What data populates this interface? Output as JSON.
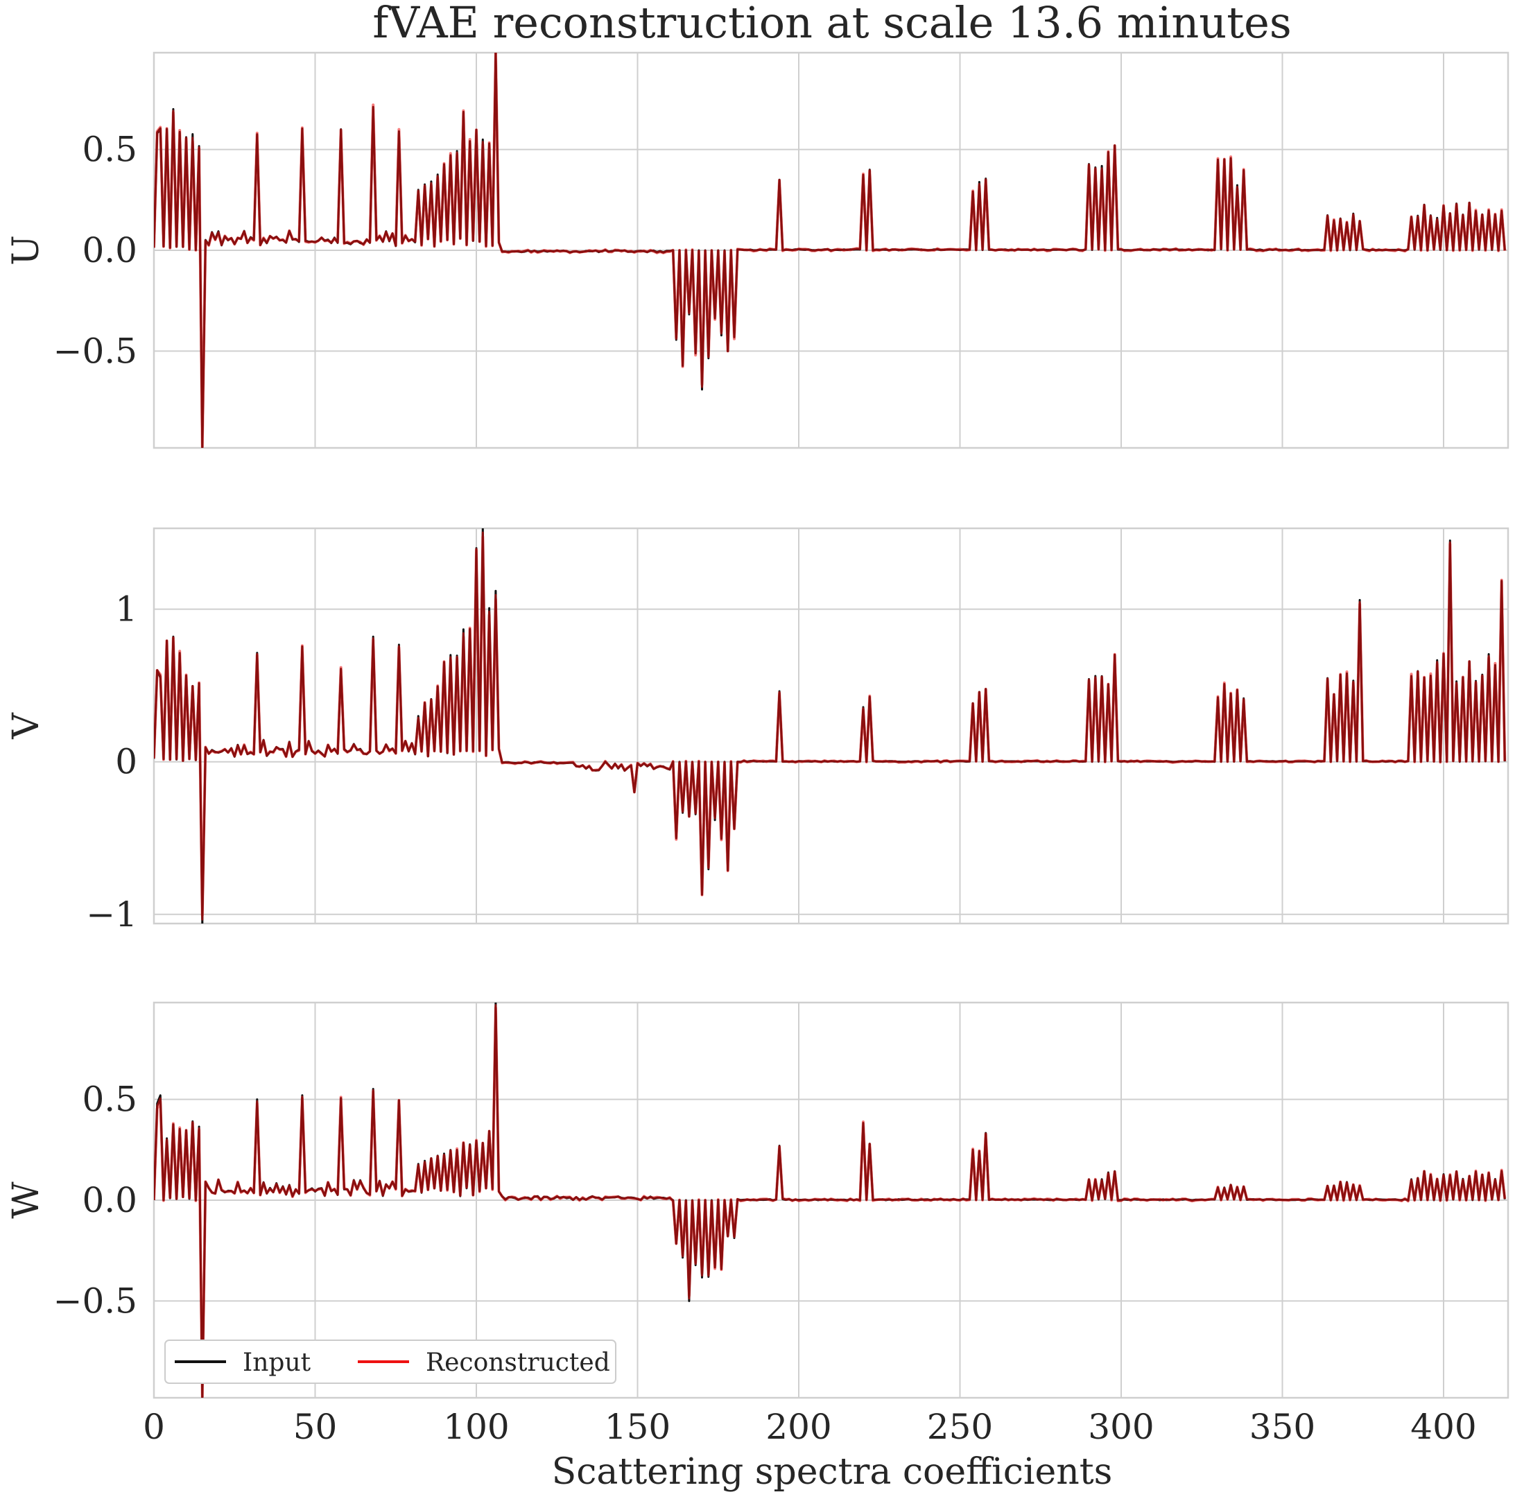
{
  "chart_data": {
    "type": "line",
    "title": "fVAE reconstruction at scale 13.6 minutes",
    "xlabel": "Scattering spectra coefficients",
    "xlim": [
      0,
      420
    ],
    "xticks": [
      0,
      50,
      100,
      150,
      200,
      250,
      300,
      350,
      400
    ],
    "legend": {
      "location": "lower-left",
      "entries": [
        {
          "label": "Input",
          "color": "#111111"
        },
        {
          "label": "Reconstructed",
          "color": "#ee1111"
        }
      ]
    },
    "overlap_color": "#8b0f0f",
    "n_coefficients": 420,
    "panels": [
      {
        "ylabel": "U",
        "ylim": [
          -0.98,
          0.98
        ],
        "yticks": [
          -0.5,
          0.0,
          0.5
        ],
        "ytick_labels": [
          "−0.5",
          "0.0",
          "0.5"
        ],
        "notable_points": [
          {
            "x": 2,
            "y": 0.6
          },
          {
            "x": 4,
            "y": 0.6
          },
          {
            "x": 6,
            "y": 0.7
          },
          {
            "x": 8,
            "y": 0.58
          },
          {
            "x": 15,
            "y": -0.98
          },
          {
            "x": 32,
            "y": 0.57
          },
          {
            "x": 46,
            "y": 0.6
          },
          {
            "x": 58,
            "y": 0.6
          },
          {
            "x": 68,
            "y": 0.7
          },
          {
            "x": 76,
            "y": 0.58
          },
          {
            "x": 96,
            "y": 0.68
          },
          {
            "x": 106,
            "y": 0.98
          },
          {
            "x": 194,
            "y": 0.35
          },
          {
            "x": 222,
            "y": 0.4
          },
          {
            "x": 298,
            "y": 0.52
          },
          {
            "x": 170,
            "y": -0.69
          },
          {
            "x": 164,
            "y": -0.57
          }
        ]
      },
      {
        "ylabel": "V",
        "ylim": [
          -1.06,
          1.53
        ],
        "yticks": [
          -1,
          0,
          1
        ],
        "ytick_labels": [
          "−1",
          "0",
          "1"
        ],
        "notable_points": [
          {
            "x": 6,
            "y": 0.82
          },
          {
            "x": 15,
            "y": -1.06
          },
          {
            "x": 68,
            "y": 0.82
          },
          {
            "x": 100,
            "y": 1.4
          },
          {
            "x": 102,
            "y": 1.53
          },
          {
            "x": 106,
            "y": 1.12
          },
          {
            "x": 149,
            "y": -0.2
          },
          {
            "x": 170,
            "y": -0.87
          },
          {
            "x": 298,
            "y": 0.7
          },
          {
            "x": 374,
            "y": 1.06
          },
          {
            "x": 402,
            "y": 1.45
          },
          {
            "x": 418,
            "y": 1.18
          }
        ]
      },
      {
        "ylabel": "W",
        "ylim": [
          -0.98,
          0.98
        ],
        "yticks": [
          -0.5,
          0.0,
          0.5
        ],
        "ytick_labels": [
          "−0.5",
          "0.0",
          "0.5"
        ],
        "notable_points": [
          {
            "x": 2,
            "y": 0.52
          },
          {
            "x": 15,
            "y": -0.98
          },
          {
            "x": 32,
            "y": 0.5
          },
          {
            "x": 46,
            "y": 0.52
          },
          {
            "x": 106,
            "y": 0.98
          },
          {
            "x": 166,
            "y": -0.5
          },
          {
            "x": 178,
            "y": -0.18
          },
          {
            "x": 194,
            "y": 0.27
          },
          {
            "x": 222,
            "y": 0.28
          }
        ]
      }
    ]
  }
}
